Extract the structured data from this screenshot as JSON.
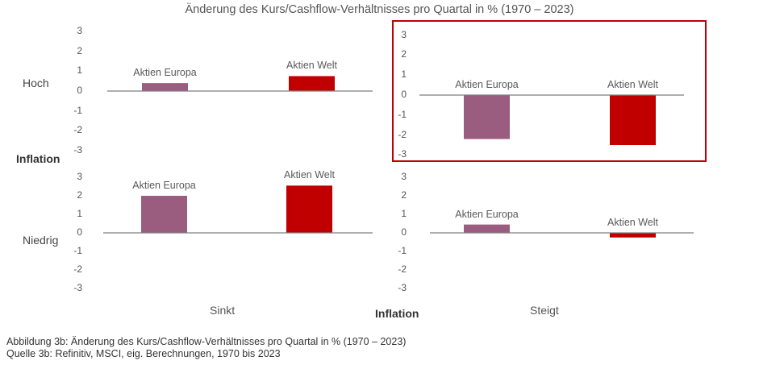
{
  "chart_data": {
    "type": "bar",
    "title": "Änderung des Kurs/Cashflow-Verhältnisses pro Quartal in % (1970 – 2023)",
    "row_axis_label": "Inflation",
    "col_axis_label": "Inflation",
    "rows": [
      "Hoch",
      "Niedrig"
    ],
    "cols": [
      "Sinkt",
      "Steigt"
    ],
    "ylim": [
      -3,
      3
    ],
    "yticks": [
      3,
      2,
      1,
      0,
      -1,
      -2,
      -3
    ],
    "colors": {
      "Aktien Europa": "#9a5d80",
      "Aktien Welt": "#c00000"
    },
    "highlight_color": "#c00000",
    "panels": [
      {
        "row": "Hoch",
        "col": "Sinkt",
        "categories": [
          "Aktien Europa",
          "Aktien Welt"
        ],
        "values": [
          0.4,
          0.75
        ],
        "highlighted": false
      },
      {
        "row": "Hoch",
        "col": "Steigt",
        "categories": [
          "Aktien Europa",
          "Aktien Welt"
        ],
        "values": [
          -2.2,
          -2.5
        ],
        "highlighted": true
      },
      {
        "row": "Niedrig",
        "col": "Sinkt",
        "categories": [
          "Aktien Europa",
          "Aktien Welt"
        ],
        "values": [
          2.0,
          2.55
        ],
        "highlighted": false
      },
      {
        "row": "Niedrig",
        "col": "Steigt",
        "categories": [
          "Aktien Europa",
          "Aktien Welt"
        ],
        "values": [
          0.45,
          -0.25
        ],
        "highlighted": false
      }
    ]
  },
  "caption": {
    "figure": "Abbildung 3b: Änderung des Kurs/Cashflow-Verhältnisses pro Quartal in % (1970 – 2023)",
    "source": "Quelle 3b: Refinitiv, MSCI, eig. Berechnungen, 1970 bis 2023"
  }
}
